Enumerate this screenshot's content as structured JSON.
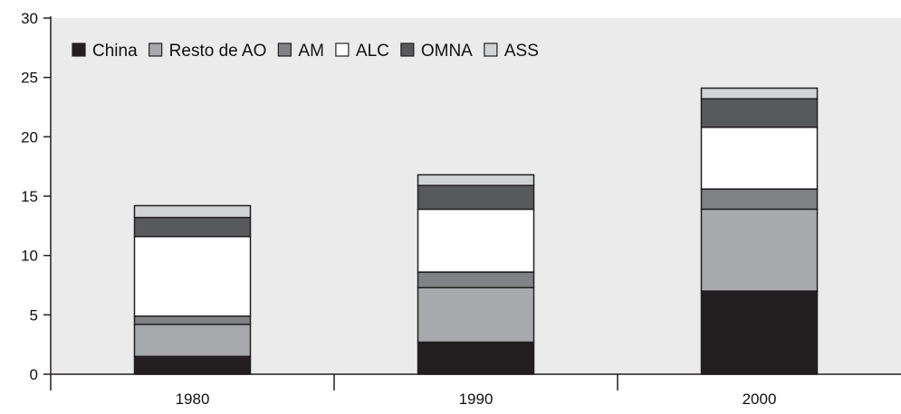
{
  "chart_data": {
    "type": "bar",
    "stacked": true,
    "categories": [
      "1980",
      "1990",
      "2000"
    ],
    "series": [
      {
        "name": "China",
        "color": "#231f20",
        "values": [
          1.5,
          2.7,
          7.0
        ]
      },
      {
        "name": "Resto de AO",
        "color": "#a7a9ac",
        "values": [
          2.7,
          4.6,
          6.9
        ]
      },
      {
        "name": "AM",
        "color": "#808285",
        "values": [
          0.7,
          1.3,
          1.7
        ]
      },
      {
        "name": "ALC",
        "color": "#ffffff",
        "values": [
          6.7,
          5.3,
          5.2
        ]
      },
      {
        "name": "OMNA",
        "color": "#58595b",
        "values": [
          1.6,
          2.0,
          2.4
        ]
      },
      {
        "name": "ASS",
        "color": "#d1d3d4",
        "values": [
          1.0,
          0.9,
          0.9
        ]
      }
    ],
    "ylim": [
      0,
      30
    ],
    "yticks": [
      0,
      5,
      10,
      15,
      20,
      25,
      30
    ],
    "plot_background": "#ebebec",
    "grid": false,
    "legend_position": "top-left"
  }
}
